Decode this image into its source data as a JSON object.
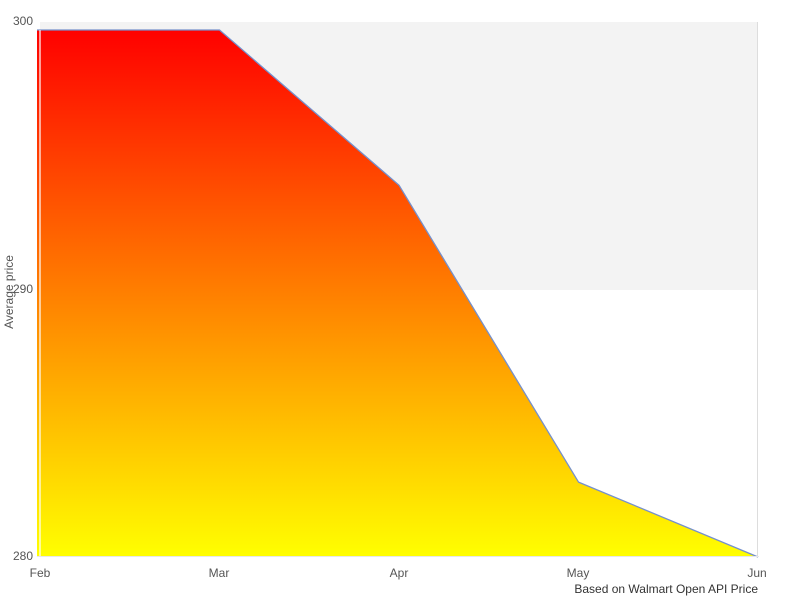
{
  "chart_data": {
    "type": "area",
    "categories": [
      "Feb",
      "Mar",
      "Apr",
      "May",
      "Jun"
    ],
    "values": [
      299.7,
      299.7,
      293.9,
      282.8,
      280.0
    ],
    "title": "",
    "xlabel": "",
    "ylabel": "Average price",
    "ylim": [
      280,
      300
    ],
    "ytick_labels": [
      "300",
      "290",
      "280"
    ],
    "grid": false,
    "legend": false,
    "plot_band": {
      "from": 290,
      "to": 300,
      "color": "#f3f3f3"
    },
    "fill_gradient": {
      "top": "#ff0000",
      "bottom": "#ffff00"
    },
    "line_color": "#7590cc"
  },
  "caption": {
    "text": "Based on Walmart Open API Price"
  },
  "colors": {
    "background": "#ffffff",
    "plot_border": "#dddddd",
    "axis_label": "#555555",
    "caption_text": "#333333",
    "axis_line": "#ffffff"
  }
}
